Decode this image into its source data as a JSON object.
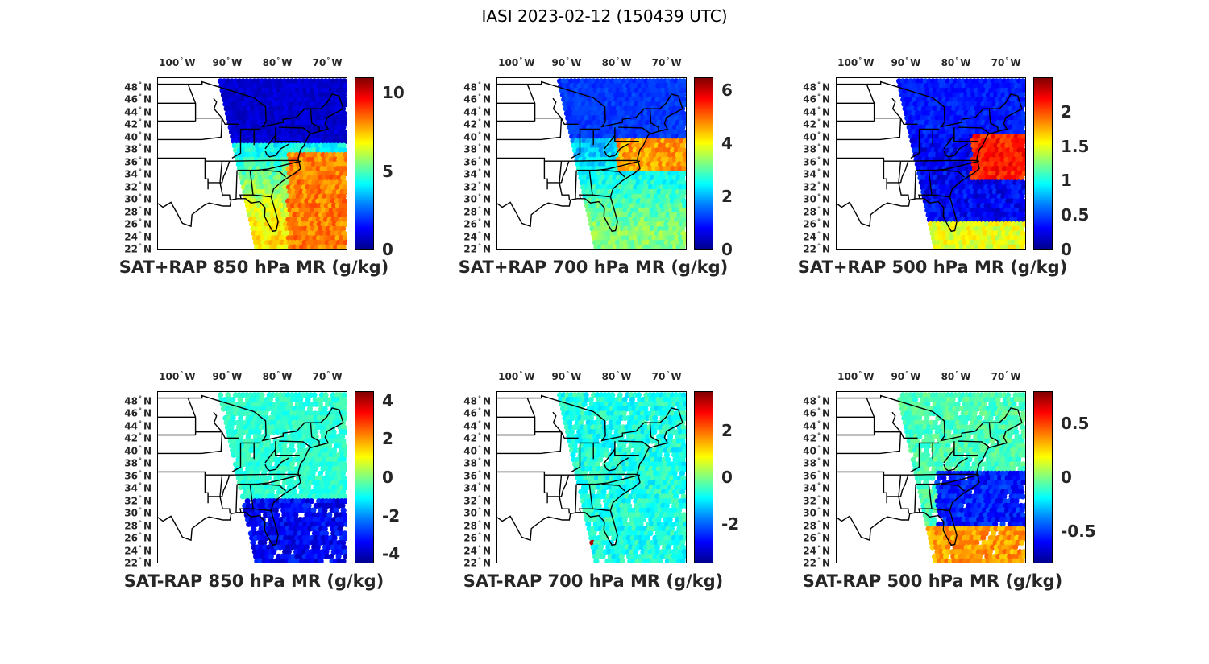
{
  "figure_title": "IASI 2023-02-12 (150439 UTC)",
  "lon_labels": [
    {
      "deg": "100",
      "dir": "W"
    },
    {
      "deg": "90",
      "dir": "W"
    },
    {
      "deg": "80",
      "dir": "W"
    },
    {
      "deg": "70",
      "dir": "W"
    }
  ],
  "lat_labels": [
    {
      "deg": "48",
      "dir": "N"
    },
    {
      "deg": "46",
      "dir": "N"
    },
    {
      "deg": "44",
      "dir": "N"
    },
    {
      "deg": "42",
      "dir": "N"
    },
    {
      "deg": "40",
      "dir": "N"
    },
    {
      "deg": "38",
      "dir": "N"
    },
    {
      "deg": "36",
      "dir": "N"
    },
    {
      "deg": "34",
      "dir": "N"
    },
    {
      "deg": "32",
      "dir": "N"
    },
    {
      "deg": "30",
      "dir": "N"
    },
    {
      "deg": "28",
      "dir": "N"
    },
    {
      "deg": "26",
      "dir": "N"
    },
    {
      "deg": "24",
      "dir": "N"
    },
    {
      "deg": "22",
      "dir": "N"
    }
  ],
  "map_extent": {
    "lon_min": -104,
    "lon_max": -66,
    "lat_min": 22,
    "lat_max": 50
  },
  "colormap": "jet",
  "panels": [
    {
      "title": "SAT+RAP 850 hPa MR (g/kg)",
      "clim": [
        0,
        11
      ],
      "ticks": [
        "0",
        "5",
        "10"
      ],
      "tick_values": [
        0,
        5,
        10
      ]
    },
    {
      "title": "SAT+RAP 700 hPa MR (g/kg)",
      "clim": [
        0,
        6.5
      ],
      "ticks": [
        "0",
        "2",
        "4",
        "6"
      ],
      "tick_values": [
        0,
        2,
        4,
        6
      ]
    },
    {
      "title": "SAT+RAP 500 hPa MR (g/kg)",
      "clim": [
        0,
        2.5
      ],
      "ticks": [
        "0",
        "0.5",
        "1",
        "1.5",
        "2"
      ],
      "tick_values": [
        0,
        0.5,
        1,
        1.5,
        2
      ]
    },
    {
      "title": "SAT-RAP 850 hPa MR (g/kg)",
      "clim": [
        -4.5,
        4.5
      ],
      "ticks": [
        "-4",
        "-2",
        "0",
        "2",
        "4"
      ],
      "tick_values": [
        -4,
        -2,
        0,
        2,
        4
      ]
    },
    {
      "title": "SAT-RAP 700 hPa MR (g/kg)",
      "clim": [
        -3.7,
        3.7
      ],
      "ticks": [
        "-2",
        "0",
        "2"
      ],
      "tick_values": [
        -2,
        0,
        2
      ]
    },
    {
      "title": "SAT-RAP 500 hPa MR (g/kg)",
      "clim": [
        -0.8,
        0.8
      ],
      "ticks": [
        "-0.5",
        "0",
        "0.5"
      ],
      "tick_values": [
        -0.5,
        0,
        0.5
      ]
    }
  ]
}
